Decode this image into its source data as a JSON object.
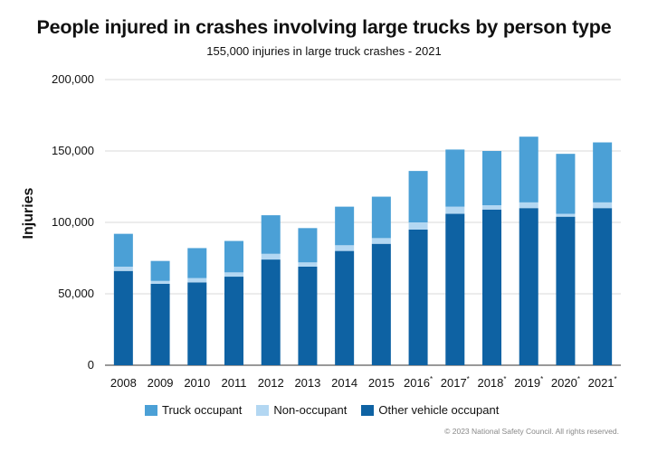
{
  "chart_data": {
    "type": "bar",
    "stacked": true,
    "title": "People injured in crashes involving large trucks by person type",
    "subtitle": "155,000 injuries in large truck crashes - 2021",
    "xlabel": "",
    "ylabel": "Injuries",
    "ylim": [
      0,
      200000
    ],
    "yticks": [
      "0",
      "50,000",
      "100,000",
      "150,000",
      "200,000"
    ],
    "ytick_values": [
      0,
      50000,
      100000,
      150000,
      200000
    ],
    "grid": true,
    "legend_position": "bottom",
    "categories": [
      "2008",
      "2009",
      "2010",
      "2011",
      "2012",
      "2013",
      "2014",
      "2015",
      "2016",
      "2017",
      "2018",
      "2019",
      "2020",
      "2021"
    ],
    "category_marks": [
      "",
      "",
      "",
      "",
      "",
      "",
      "",
      "",
      "*",
      "*",
      "*",
      "*",
      "*",
      "*"
    ],
    "series": [
      {
        "name": "Other vehicle occupant",
        "color": "#0e62a3",
        "values": [
          66000,
          57000,
          58000,
          62000,
          74000,
          69000,
          80000,
          85000,
          95000,
          106000,
          109000,
          110000,
          104000,
          110000
        ]
      },
      {
        "name": "Non-occupant",
        "color": "#b3d7f2",
        "values": [
          3000,
          2000,
          3000,
          3000,
          4000,
          3000,
          4000,
          4000,
          5000,
          5000,
          3000,
          4000,
          2000,
          4000
        ]
      },
      {
        "name": "Truck occupant",
        "color": "#4ba0d6",
        "values": [
          23000,
          14000,
          21000,
          22000,
          27000,
          24000,
          27000,
          29000,
          36000,
          40000,
          38000,
          46000,
          42000,
          42000
        ]
      }
    ],
    "legend_order": [
      "Truck occupant",
      "Non-occupant",
      "Other vehicle occupant"
    ]
  },
  "copyright": "© 2023 National Safety Council. All rights reserved."
}
